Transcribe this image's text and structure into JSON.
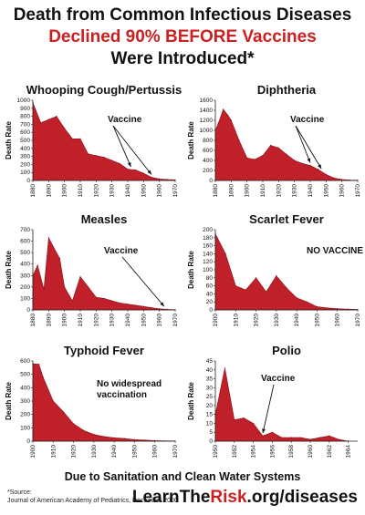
{
  "header": {
    "line1": "Death from Common Infectious Diseases",
    "line2": "Declined 90% BEFORE Vaccines",
    "line3": "Were Introduced*"
  },
  "footer": {
    "caption": "Due to Sanitation and Clean Water Systems",
    "source_label": "*Source:",
    "source_text": "Journal of American Academy of Pediatrics, December 2000",
    "brand_prefix": "LearnThe",
    "brand_accent": "Risk",
    "brand_suffix": ".org/diseases"
  },
  "colors": {
    "fill": "#c0202a",
    "accent": "#cc1f1f",
    "axis": "#222222"
  },
  "chart_data": [
    {
      "type": "area",
      "title": "Whooping Cough/Pertussis",
      "ylabel": "Death Rate",
      "xlim": [
        1880,
        1970
      ],
      "ylim": [
        0,
        1000
      ],
      "xticks": [
        1880,
        1890,
        1900,
        1910,
        1920,
        1930,
        1940,
        1950,
        1960,
        1970
      ],
      "yticks": [
        0,
        100,
        200,
        300,
        400,
        500,
        600,
        700,
        800,
        900,
        1000
      ],
      "x": [
        1880,
        1885,
        1890,
        1895,
        1900,
        1905,
        1910,
        1915,
        1920,
        1925,
        1930,
        1935,
        1940,
        1945,
        1950,
        1955,
        1960,
        1965,
        1970
      ],
      "y": [
        970,
        720,
        760,
        800,
        650,
        520,
        520,
        330,
        310,
        290,
        250,
        210,
        140,
        130,
        90,
        40,
        20,
        12,
        8
      ],
      "annotation": "Vaccine",
      "arrow_targets": [
        1942,
        1955
      ]
    },
    {
      "type": "area",
      "title": "Diphtheria",
      "ylabel": "Death Rate",
      "xlim": [
        1880,
        1970
      ],
      "ylim": [
        0,
        1600
      ],
      "xticks": [
        1880,
        1890,
        1900,
        1910,
        1920,
        1930,
        1940,
        1950,
        1960,
        1970
      ],
      "yticks": [
        0,
        200,
        400,
        600,
        800,
        1000,
        1200,
        1400,
        1600
      ],
      "x": [
        1880,
        1882,
        1885,
        1888,
        1890,
        1895,
        1900,
        1905,
        1910,
        1915,
        1920,
        1925,
        1930,
        1935,
        1940,
        1945,
        1950,
        1955,
        1960,
        1965,
        1970
      ],
      "y": [
        1000,
        1150,
        1420,
        1300,
        1200,
        800,
        450,
        420,
        500,
        700,
        650,
        520,
        400,
        340,
        300,
        220,
        120,
        50,
        20,
        8,
        5
      ],
      "annotation": "Vaccine",
      "arrow_targets": [
        1940,
        1947
      ]
    },
    {
      "type": "area",
      "title": "Measles",
      "ylabel": "Death Rate",
      "xlim": [
        1880,
        1970
      ],
      "ylim": [
        0,
        700
      ],
      "xticks": [
        1880,
        1890,
        1900,
        1910,
        1920,
        1930,
        1940,
        1950,
        1960,
        1970
      ],
      "yticks": [
        0,
        100,
        200,
        300,
        400,
        500,
        600,
        700
      ],
      "x": [
        1880,
        1883,
        1887,
        1890,
        1893,
        1897,
        1900,
        1905,
        1910,
        1915,
        1920,
        1925,
        1930,
        1935,
        1940,
        1945,
        1950,
        1955,
        1960,
        1965,
        1970
      ],
      "y": [
        300,
        390,
        180,
        630,
        550,
        450,
        200,
        80,
        290,
        200,
        110,
        100,
        80,
        60,
        50,
        40,
        30,
        20,
        10,
        5,
        2
      ],
      "annotation": "Vaccine",
      "arrow_targets": [
        1963
      ]
    },
    {
      "type": "area",
      "title": "Scarlet Fever",
      "ylabel": "Death Rate",
      "xlim": [
        1900,
        1970
      ],
      "ylim": [
        0,
        200
      ],
      "xticks": [
        1900,
        1910,
        1920,
        1930,
        1940,
        1950,
        1960,
        1970
      ],
      "yticks": [
        0,
        20,
        40,
        60,
        80,
        100,
        120,
        140,
        160,
        180,
        200
      ],
      "x": [
        1900,
        1905,
        1910,
        1915,
        1920,
        1925,
        1930,
        1935,
        1940,
        1945,
        1950,
        1955,
        1960,
        1965,
        1970
      ],
      "y": [
        190,
        140,
        60,
        50,
        80,
        45,
        85,
        55,
        30,
        20,
        8,
        5,
        3,
        2,
        1
      ],
      "annotation": "NO VACCINE",
      "arrow_targets": []
    },
    {
      "type": "area",
      "title": "Typhoid Fever",
      "ylabel": "Death Rate",
      "xlim": [
        1900,
        1970
      ],
      "ylim": [
        0,
        600
      ],
      "xticks": [
        1900,
        1910,
        1920,
        1930,
        1940,
        1950,
        1960,
        1970
      ],
      "yticks": [
        0,
        100,
        200,
        300,
        400,
        500,
        600
      ],
      "x": [
        1900,
        1903,
        1905,
        1910,
        1915,
        1920,
        1925,
        1930,
        1935,
        1940,
        1945,
        1950,
        1955,
        1960,
        1965,
        1970
      ],
      "y": [
        580,
        575,
        480,
        300,
        220,
        130,
        80,
        50,
        35,
        25,
        20,
        12,
        8,
        4,
        2,
        1
      ],
      "annotation": "No widespread vaccination",
      "arrow_targets": []
    },
    {
      "type": "area",
      "title": "Polio",
      "ylabel": "Death Rate",
      "xlim": [
        1950,
        1965
      ],
      "ylim": [
        0,
        45
      ],
      "xticks": [
        1950,
        1952,
        1954,
        1956,
        1958,
        1960,
        1962,
        1964
      ],
      "yticks": [
        0,
        5,
        10,
        15,
        20,
        25,
        30,
        35,
        40,
        45
      ],
      "x": [
        1950,
        1951,
        1952,
        1953,
        1954,
        1955,
        1956,
        1957,
        1958,
        1959,
        1960,
        1961,
        1962,
        1963,
        1964
      ],
      "y": [
        15,
        41,
        12,
        13,
        10,
        3,
        5,
        2,
        2,
        2,
        1,
        2,
        3,
        1,
        0
      ],
      "annotation": "Vaccine",
      "arrow_targets": [
        1955
      ]
    }
  ]
}
